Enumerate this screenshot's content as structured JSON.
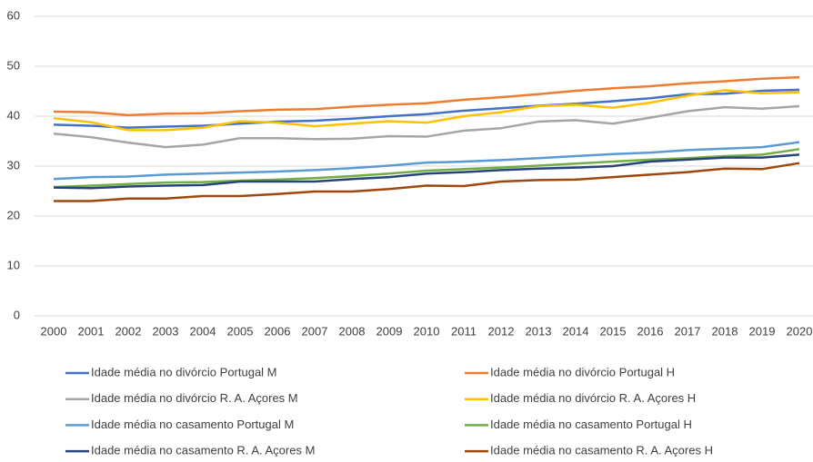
{
  "chart_data": {
    "type": "line",
    "categories": [
      "2000",
      "2001",
      "2002",
      "2003",
      "2004",
      "2005",
      "2006",
      "2007",
      "2008",
      "2009",
      "2010",
      "2011",
      "2012",
      "2013",
      "2014",
      "2015",
      "2016",
      "2017",
      "2018",
      "2019",
      "2020"
    ],
    "ylim": [
      0,
      60
    ],
    "yticks": [
      0,
      10,
      20,
      30,
      40,
      50,
      60
    ],
    "grid": true,
    "series": [
      {
        "name": "Idade média no divórcio Portugal M",
        "color": "#4472c4",
        "values": [
          38.3,
          38.1,
          37.7,
          37.9,
          38.1,
          38.5,
          38.9,
          39.1,
          39.5,
          40.0,
          40.4,
          41.1,
          41.6,
          42.1,
          42.5,
          43.0,
          43.6,
          44.4,
          44.5,
          45.1,
          45.3
        ]
      },
      {
        "name": "Idade média no divórcio Portugal H",
        "color": "#ed7d31",
        "values": [
          40.9,
          40.8,
          40.2,
          40.5,
          40.6,
          41.0,
          41.3,
          41.4,
          41.9,
          42.3,
          42.6,
          43.3,
          43.8,
          44.4,
          45.1,
          45.6,
          46.0,
          46.6,
          47.0,
          47.5,
          47.8
        ]
      },
      {
        "name": "Idade média no divórcio R. A. Açores M",
        "color": "#a5a5a5",
        "values": [
          36.5,
          35.8,
          34.7,
          33.8,
          34.3,
          35.6,
          35.6,
          35.4,
          35.5,
          36.0,
          35.9,
          37.1,
          37.6,
          38.9,
          39.2,
          38.5,
          39.7,
          41.0,
          41.8,
          41.5,
          42.0
        ]
      },
      {
        "name": "Idade média no divórcio R. A. Açores H",
        "color": "#ffc000",
        "values": [
          39.6,
          38.8,
          37.2,
          37.2,
          37.7,
          39.0,
          38.7,
          38.0,
          38.5,
          39.0,
          38.7,
          40.0,
          40.8,
          42.0,
          42.3,
          41.7,
          42.7,
          44.1,
          45.2,
          44.6,
          44.8
        ]
      },
      {
        "name": "Idade média no casamento Portugal M",
        "color": "#5b9bd5",
        "values": [
          27.4,
          27.8,
          27.9,
          28.3,
          28.5,
          28.7,
          28.9,
          29.2,
          29.6,
          30.1,
          30.7,
          30.9,
          31.2,
          31.6,
          32.0,
          32.4,
          32.7,
          33.2,
          33.5,
          33.8,
          34.8
        ]
      },
      {
        "name": "Idade média no casamento Portugal H",
        "color": "#70ad47",
        "values": [
          25.8,
          26.1,
          26.4,
          26.7,
          26.8,
          27.1,
          27.3,
          27.6,
          28.0,
          28.5,
          29.1,
          29.4,
          29.7,
          30.1,
          30.5,
          30.9,
          31.3,
          31.6,
          32.0,
          32.3,
          33.4
        ]
      },
      {
        "name": "Idade média no casamento R. A. Açores M",
        "color": "#264478",
        "values": [
          25.7,
          25.6,
          25.9,
          26.1,
          26.2,
          26.9,
          26.9,
          26.9,
          27.4,
          27.8,
          28.5,
          28.8,
          29.2,
          29.5,
          29.7,
          30.0,
          30.9,
          31.3,
          31.7,
          31.7,
          32.3
        ]
      },
      {
        "name": "Idade média no casamento R. A. Açores H",
        "color": "#9e480e",
        "values": [
          23.0,
          23.0,
          23.5,
          23.5,
          24.0,
          24.0,
          24.4,
          24.9,
          24.9,
          25.4,
          26.1,
          26.0,
          26.9,
          27.2,
          27.3,
          27.8,
          28.3,
          28.8,
          29.5,
          29.4,
          30.6
        ]
      }
    ]
  }
}
